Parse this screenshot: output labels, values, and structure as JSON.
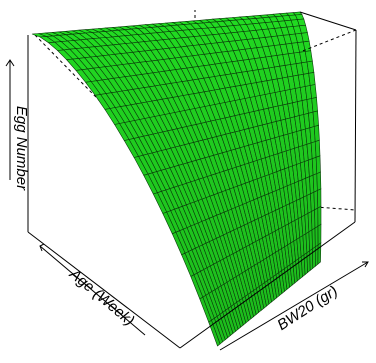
{
  "chart_data": {
    "type": "surface",
    "title": "",
    "xlabel": "BW20 (gr)",
    "ylabel": "Age (Week)",
    "zlabel": "Egg Number",
    "surface_color": "#22dd22",
    "mesh_color": "#0a3a0a",
    "box_color": "#000000",
    "tick_labels_shown": false,
    "grid_rows": 20,
    "grid_cols": 40
  }
}
